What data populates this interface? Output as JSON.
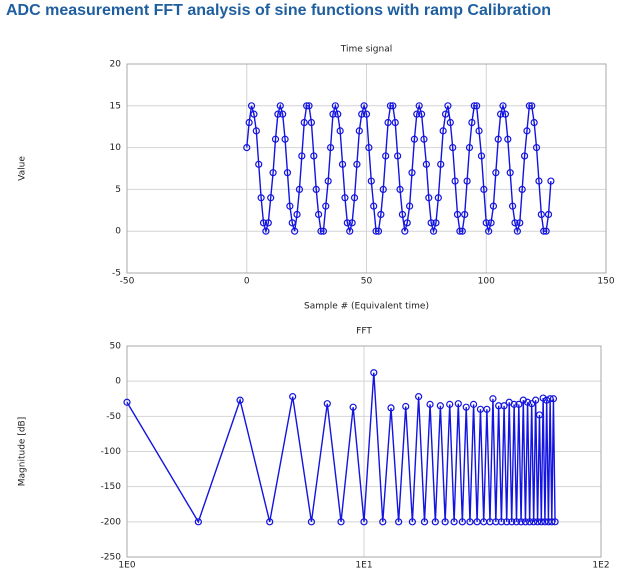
{
  "page_title": "ADC measurement FFT analysis of sine functions with ramp Calibration",
  "chart_data": [
    {
      "type": "line",
      "title": "Time signal",
      "x_label": "Sample # (Equivalent time)",
      "y_label": "Value",
      "color": "#1414e0",
      "markers": "circle",
      "grid": true,
      "x": [
        0,
        1,
        2,
        3,
        4,
        5,
        6,
        7,
        8,
        9,
        10,
        11,
        12,
        13,
        14,
        15,
        16,
        17,
        18,
        19,
        20,
        21,
        22,
        23,
        24,
        25,
        26,
        27,
        28,
        29,
        30,
        31,
        32,
        33,
        34,
        35,
        36,
        37,
        38,
        39,
        40,
        41,
        42,
        43,
        44,
        45,
        46,
        47,
        48,
        49,
        50,
        51,
        52,
        53,
        54,
        55,
        56,
        57,
        58,
        59,
        60,
        61,
        62,
        63,
        64,
        65,
        66,
        67,
        68,
        69,
        70,
        71,
        72,
        73,
        74,
        75,
        76,
        77,
        78,
        79,
        80,
        81,
        82,
        83,
        84,
        85,
        86,
        87,
        88,
        89,
        90,
        91,
        92,
        93,
        94,
        95,
        96,
        97,
        98,
        99,
        100,
        101,
        102,
        103,
        104,
        105,
        106,
        107,
        108,
        109,
        110,
        111,
        112,
        113,
        114,
        115,
        116,
        117,
        118,
        119,
        120,
        121,
        122,
        123,
        124,
        125,
        126,
        127
      ],
      "values": [
        10,
        13,
        15,
        14,
        12,
        8,
        4,
        1,
        0,
        1,
        4,
        7,
        11,
        14,
        15,
        14,
        11,
        7,
        3,
        1,
        0,
        2,
        5,
        9,
        13,
        15,
        15,
        13,
        9,
        5,
        2,
        0,
        0,
        3,
        6,
        10,
        14,
        15,
        14,
        12,
        8,
        4,
        1,
        0,
        1,
        4,
        8,
        12,
        14,
        15,
        14,
        10,
        6,
        3,
        0,
        0,
        2,
        5,
        9,
        13,
        15,
        15,
        13,
        9,
        5,
        2,
        0,
        1,
        3,
        7,
        11,
        14,
        15,
        14,
        11,
        8,
        4,
        1,
        0,
        1,
        4,
        8,
        12,
        14,
        15,
        13,
        10,
        6,
        2,
        0,
        0,
        2,
        6,
        10,
        13,
        15,
        15,
        12,
        9,
        5,
        1,
        0,
        1,
        3,
        7,
        11,
        14,
        15,
        14,
        11,
        7,
        3,
        1,
        0,
        1,
        5,
        9,
        12,
        15,
        15,
        13,
        10,
        6,
        2,
        0,
        0,
        2,
        6
      ],
      "xlim": [
        -50,
        150
      ],
      "xticks": [
        -50,
        0,
        50,
        100,
        150
      ],
      "ylim": [
        -5,
        20
      ],
      "yticks": [
        -5,
        0,
        5,
        10,
        15,
        20
      ]
    },
    {
      "type": "line",
      "title": "FFT",
      "y_label": "Magnitude [dB]",
      "color": "#1414e0",
      "markers": "circle",
      "grid": true,
      "xlog": true,
      "x": [
        1,
        2,
        3,
        4,
        5,
        6,
        7,
        8,
        9,
        10,
        11,
        12,
        13,
        14,
        15,
        16,
        17,
        18,
        19,
        20,
        21,
        22,
        23,
        24,
        25,
        26,
        27,
        28,
        29,
        30,
        31,
        32,
        33,
        34,
        35,
        36,
        37,
        38,
        39,
        40,
        41,
        42,
        43,
        44,
        45,
        46,
        47,
        48,
        49,
        50,
        51,
        52,
        53,
        54,
        55,
        56,
        57,
        58,
        59,
        60,
        61,
        62,
        63,
        64
      ],
      "values": [
        -30,
        -200,
        -27,
        -200,
        -22,
        -200,
        -32,
        -200,
        -37,
        -200,
        12,
        -200,
        -38,
        -200,
        -36,
        -200,
        -22,
        -200,
        -33,
        -200,
        -35,
        -200,
        -33,
        -200,
        -32,
        -200,
        -37,
        -200,
        -33,
        -200,
        -40,
        -200,
        -40,
        -200,
        -25,
        -200,
        -35,
        -200,
        -35,
        -200,
        -30,
        -200,
        -33,
        -200,
        -33,
        -200,
        -27,
        -200,
        -30,
        -200,
        -32,
        -200,
        -27,
        -200,
        -48,
        -200,
        -24,
        -200,
        -27,
        -200,
        -25,
        -200,
        -25,
        -200
      ],
      "xlim": [
        1,
        100
      ],
      "xticks": [
        {
          "value": 1,
          "label": "1E0"
        },
        {
          "value": 10,
          "label": "1E1"
        },
        {
          "value": 100,
          "label": "1E2"
        }
      ],
      "ylim": [
        -250,
        50
      ],
      "yticks": [
        -250,
        -200,
        -150,
        -100,
        -50,
        0,
        50
      ]
    }
  ]
}
